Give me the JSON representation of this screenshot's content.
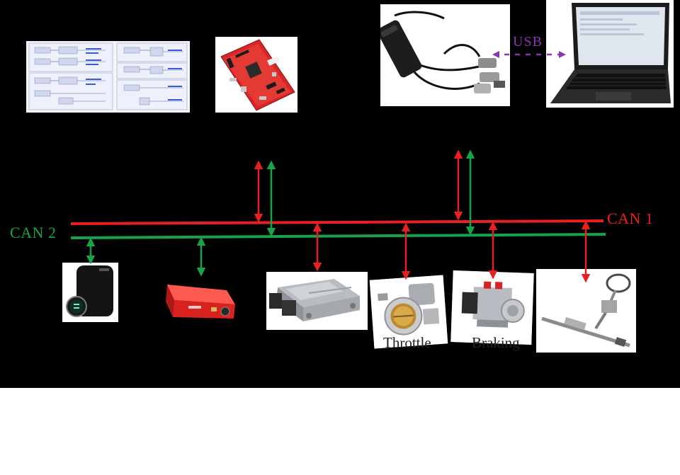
{
  "buses": {
    "can1": {
      "label": "CAN 1",
      "color": "#e8201f"
    },
    "can2": {
      "label": "CAN 2",
      "color": "#17a34a"
    }
  },
  "usb": {
    "label": "USB",
    "color": "#8a35b8"
  },
  "captions": {
    "throttle": "Throttle",
    "braking": "Braking"
  }
}
